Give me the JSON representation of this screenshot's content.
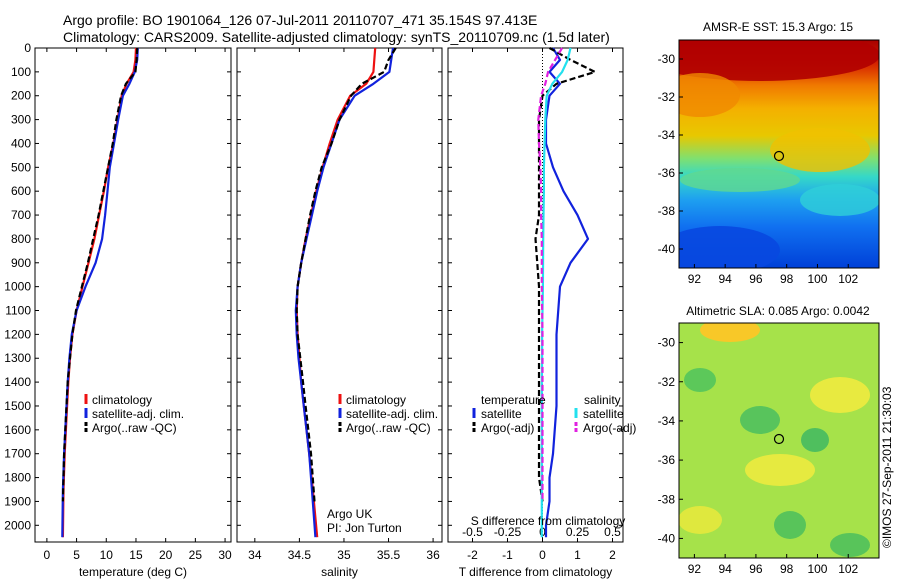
{
  "header": {
    "title_line1": "Argo profile: BO 1901064_126 07-Jul-2011 20110707_471 35.154S 97.413E",
    "title_line2": "Climatology: CARS2009. Satellite-adjusted climatology: synTS_20110709.nc (1.5d later)"
  },
  "colors": {
    "climatology": "#ee1111",
    "satellite": "#1122dd",
    "argo": "#000000",
    "salinity_satellite": "#22e0ee",
    "salinity_argo": "#e020e0"
  },
  "chart_data": [
    {
      "type": "line",
      "name": "temperature-profile",
      "xlabel": "temperature (deg C)",
      "xlim": [
        -2,
        31
      ],
      "ylim": [
        0,
        2070
      ],
      "y_reversed": true,
      "xticks": [
        0,
        5,
        10,
        15,
        20,
        25,
        30
      ],
      "yticks": [
        0,
        100,
        200,
        300,
        400,
        500,
        600,
        700,
        800,
        900,
        1000,
        1100,
        1200,
        1300,
        1400,
        1500,
        1600,
        1700,
        1800,
        1900,
        2000
      ],
      "legend": [
        "climatology",
        "satellite-adj. clim.",
        "Argo(..raw -QC)"
      ],
      "series": [
        {
          "name": "climatology",
          "color_key": "climatology",
          "style": "solid",
          "x": [
            15.0,
            14.9,
            14.6,
            13.4,
            12.6,
            11.9,
            11.2,
            10.3,
            9.6,
            8.8,
            8.0,
            7.0,
            6.0,
            5.0,
            4.3,
            3.9,
            3.6,
            3.4,
            3.2,
            3.0,
            2.8,
            2.7
          ],
          "y": [
            0,
            50,
            100,
            150,
            200,
            300,
            400,
            500,
            600,
            700,
            800,
            900,
            1000,
            1100,
            1200,
            1300,
            1400,
            1500,
            1600,
            1700,
            1850,
            2050
          ]
        },
        {
          "name": "satellite-adj. clim.",
          "color_key": "satellite",
          "style": "solid",
          "x": [
            15.3,
            15.2,
            14.8,
            13.9,
            12.8,
            12.0,
            11.3,
            10.6,
            10.2,
            9.8,
            9.3,
            8.2,
            6.5,
            5.0,
            4.2,
            3.8,
            3.5,
            3.3,
            3.1,
            2.9,
            2.7,
            2.6
          ],
          "y": [
            0,
            50,
            100,
            150,
            200,
            300,
            400,
            500,
            600,
            700,
            800,
            900,
            1000,
            1100,
            1200,
            1300,
            1400,
            1500,
            1600,
            1700,
            1850,
            2050
          ]
        },
        {
          "name": "Argo(..raw -QC)",
          "color_key": "argo",
          "style": "dash",
          "x": [
            15.2,
            15.1,
            14.9,
            13.3,
            12.5,
            11.7,
            11.1,
            10.3,
            9.5,
            8.7,
            7.8,
            6.9,
            5.9,
            4.9,
            4.3,
            3.9,
            3.5,
            3.3,
            3.1,
            2.9,
            2.7
          ],
          "y": [
            0,
            50,
            100,
            150,
            200,
            300,
            400,
            500,
            600,
            700,
            800,
            900,
            1000,
            1100,
            1200,
            1300,
            1400,
            1500,
            1600,
            1700,
            1900
          ]
        }
      ]
    },
    {
      "type": "line",
      "name": "salinity-profile",
      "xlabel": "salinity",
      "xlim": [
        33.8,
        36.1
      ],
      "ylim": [
        0,
        2070
      ],
      "y_reversed": true,
      "xticks": [
        34,
        34.5,
        35,
        35.5,
        36
      ],
      "xtick_labels": [
        "34",
        "34.5",
        "35",
        "35.5",
        "36"
      ],
      "legend": [
        "climatology",
        "satellite-adj. clim.",
        "Argo(..raw -QC)"
      ],
      "annotation": [
        "Argo UK",
        "PI: Jon Turton"
      ],
      "series": [
        {
          "name": "climatology",
          "color_key": "climatology",
          "style": "solid",
          "x": [
            35.35,
            35.34,
            35.33,
            35.25,
            35.07,
            34.93,
            34.84,
            34.76,
            34.69,
            34.63,
            34.57,
            34.52,
            34.48,
            34.47,
            34.48,
            34.5,
            34.52,
            34.55,
            34.58,
            34.61,
            34.65,
            34.7
          ],
          "y": [
            0,
            50,
            100,
            150,
            200,
            300,
            400,
            500,
            600,
            700,
            800,
            900,
            1000,
            1100,
            1200,
            1300,
            1400,
            1500,
            1600,
            1700,
            1850,
            2050
          ]
        },
        {
          "name": "satellite-adj. clim.",
          "color_key": "satellite",
          "style": "solid",
          "x": [
            35.55,
            35.53,
            35.51,
            35.33,
            35.12,
            34.95,
            34.86,
            34.77,
            34.7,
            34.64,
            34.58,
            34.52,
            34.48,
            34.46,
            34.47,
            34.49,
            34.52,
            34.55,
            34.58,
            34.61,
            34.64,
            34.68
          ],
          "y": [
            0,
            50,
            100,
            150,
            200,
            300,
            400,
            500,
            600,
            700,
            800,
            900,
            1000,
            1100,
            1200,
            1300,
            1400,
            1500,
            1600,
            1700,
            1850,
            2050
          ]
        },
        {
          "name": "Argo(..raw -QC)",
          "color_key": "argo",
          "style": "dash",
          "x": [
            35.58,
            35.5,
            35.45,
            35.2,
            35.08,
            34.95,
            34.86,
            34.75,
            34.68,
            34.62,
            34.57,
            34.52,
            34.48,
            34.47,
            34.48,
            34.51,
            34.54,
            34.57,
            34.6,
            34.63,
            34.67
          ],
          "y": [
            0,
            50,
            100,
            150,
            200,
            300,
            400,
            500,
            600,
            700,
            800,
            900,
            1000,
            1100,
            1200,
            1300,
            1400,
            1500,
            1600,
            1700,
            1900
          ]
        }
      ]
    },
    {
      "type": "line",
      "name": "difference-profile",
      "xlabel": "T difference from climatology",
      "x2label": "S difference from climatology",
      "xlim": [
        -2.7,
        2.3
      ],
      "ylim": [
        0,
        2070
      ],
      "y_reversed": true,
      "xticks": [
        -2,
        -1,
        0,
        1,
        2
      ],
      "x2ticks": [
        -0.5,
        -0.25,
        0,
        0.25,
        0.5
      ],
      "x2tick_labels": [
        "-0.5",
        "-0.25",
        "0",
        "0.25",
        "0.5"
      ],
      "x2_scale": 4,
      "legend_groups": [
        {
          "title": "temperature",
          "items": [
            "satellite",
            "Argo(-adj)"
          ]
        },
        {
          "title": "salinity",
          "items": [
            "satellite",
            "Argo(-adj)"
          ]
        }
      ],
      "series": [
        {
          "name": "temperature satellite",
          "color_key": "satellite",
          "style": "solid",
          "x": [
            0.3,
            0.5,
            0.2,
            0.5,
            0.2,
            0.1,
            0.1,
            0.3,
            0.6,
            1.0,
            1.3,
            0.8,
            0.5,
            0.4,
            0.4,
            0.4,
            0.3,
            0.2,
            0.2,
            0.1,
            0.1
          ],
          "y": [
            0,
            50,
            100,
            150,
            200,
            300,
            400,
            500,
            600,
            700,
            800,
            900,
            1000,
            1200,
            1300,
            1500,
            1700,
            1800,
            1900,
            2000,
            2050
          ]
        },
        {
          "name": "temperature Argo(-adj)",
          "color_key": "argo",
          "style": "dash",
          "x": [
            0.2,
            0.8,
            1.5,
            0.4,
            0.0,
            -0.1,
            -0.1,
            -0.1,
            -0.1,
            -0.1,
            -0.2,
            -0.1,
            -0.1,
            -0.1,
            -0.1,
            -0.1,
            0.0
          ],
          "y": [
            0,
            50,
            100,
            150,
            200,
            300,
            400,
            500,
            600,
            700,
            800,
            1000,
            1200,
            1400,
            1600,
            1800,
            1900
          ]
        },
        {
          "name": "salinity satellite",
          "color_key": "salinity_satellite",
          "style": "solid",
          "x": [
            0.8,
            0.72,
            0.56,
            0.28,
            0.12,
            0.08,
            0.06,
            0.04,
            0.04,
            0.03,
            0.02,
            0.01,
            -0.01,
            -0.01,
            -0.02,
            -0.02,
            -0.02,
            -0.02,
            -0.02,
            -0.02,
            -0.02
          ],
          "y": [
            0,
            50,
            100,
            150,
            200,
            300,
            400,
            500,
            600,
            700,
            800,
            1000,
            1200,
            1300,
            1400,
            1500,
            1600,
            1700,
            1800,
            1900,
            2050
          ]
        },
        {
          "name": "salinity Argo(-adj)",
          "color_key": "salinity_argo",
          "style": "dash",
          "x": [
            0.56,
            0.36,
            0.16,
            0.08,
            -0.04,
            -0.12,
            -0.1,
            -0.06,
            -0.04,
            -0.04,
            -0.02,
            -0.02,
            0.0,
            0.0,
            0.0
          ],
          "y": [
            0,
            50,
            100,
            150,
            200,
            300,
            400,
            500,
            600,
            700,
            800,
            1000,
            1200,
            1400,
            1900
          ]
        }
      ]
    },
    {
      "type": "heatmap",
      "name": "amsre-sst-map",
      "title": "AMSR-E SST: 15.3 Argo: 15",
      "xlim": [
        91,
        104
      ],
      "ylim": [
        -41,
        -29
      ],
      "xticks": [
        92,
        94,
        96,
        98,
        100,
        102
      ],
      "yticks": [
        -30,
        -32,
        -34,
        -36,
        -38,
        -40
      ],
      "marker": {
        "lon": 97.413,
        "lat": -35.154
      }
    },
    {
      "type": "heatmap",
      "name": "altimetric-sla-map",
      "title": "Altimetric SLA: 0.085 Argo: 0.0042",
      "xlim": [
        91,
        104
      ],
      "ylim": [
        -41,
        -29
      ],
      "xticks": [
        92,
        94,
        96,
        98,
        100,
        102
      ],
      "yticks": [
        -30,
        -32,
        -34,
        -36,
        -38,
        -40
      ],
      "marker": {
        "lon": 97.413,
        "lat": -35.154
      }
    }
  ],
  "footer": {
    "stamp": "©IMOS 27-Sep-2011 21:30:03"
  }
}
